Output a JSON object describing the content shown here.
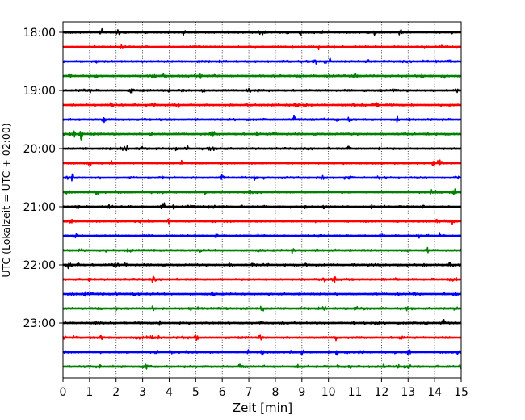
{
  "chart_data": {
    "type": "line",
    "subtype": "helicorder",
    "title": "",
    "xlabel": "Zeit  [min]",
    "ylabel": "UTC (Lokalzeit = UTC + 02:00)",
    "xlim": [
      0,
      15
    ],
    "x_ticks": [
      0,
      1,
      2,
      3,
      4,
      5,
      6,
      7,
      8,
      9,
      10,
      11,
      12,
      13,
      14,
      15
    ],
    "y_tick_labels": [
      "18:00",
      "19:00",
      "20:00",
      "21:00",
      "22:00",
      "23:00"
    ],
    "y_tick_rows": [
      0,
      4,
      8,
      12,
      16,
      20
    ],
    "minutes_per_row": 15,
    "row_count": 24,
    "grid": "vertical dotted at each minute",
    "colors": [
      "#000000",
      "#ff0000",
      "#0000ff",
      "#008000"
    ],
    "events": [
      {
        "row": 6,
        "minute": 1.55,
        "amplitude": 1.0
      },
      {
        "row": 7,
        "minute": 0.42,
        "amplitude": 0.8
      },
      {
        "row": 7,
        "minute": 0.68,
        "amplitude": 0.8
      },
      {
        "row": 2,
        "minute": 11.45,
        "amplitude": 0.45
      },
      {
        "row": 2,
        "minute": 9.5,
        "amplitude": 0.3
      },
      {
        "row": 16,
        "minute": 0.6,
        "amplitude": 0.35
      },
      {
        "row": 4,
        "minute": 5.3,
        "amplitude": 0.35
      },
      {
        "row": 13,
        "minute": 14.1,
        "amplitude": 0.3
      },
      {
        "row": 5,
        "minute": 14.6,
        "amplitude": 0.3
      },
      {
        "row": 10,
        "minute": 9.8,
        "amplitude": 0.3
      }
    ]
  }
}
